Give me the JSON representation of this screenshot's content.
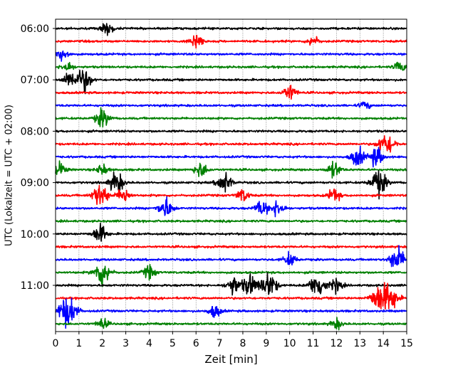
{
  "chart_data": {
    "type": "line",
    "title": "",
    "xlabel": "Zeit  [min]",
    "ylabel": "UTC (Lokalzeit = UTC + 02:00)",
    "xlim": [
      0,
      15
    ],
    "x_ticks": [
      0,
      1,
      2,
      3,
      4,
      5,
      6,
      7,
      8,
      9,
      10,
      11,
      12,
      13,
      14,
      15
    ],
    "x_tick_labels": [
      "0",
      "1",
      "2",
      "3",
      "4",
      "5",
      "6",
      "7",
      "8",
      "9",
      "10",
      "11",
      "12",
      "13",
      "14",
      "15"
    ],
    "y_tick_labels": [
      "06:00",
      "07:00",
      "08:00",
      "09:00",
      "10:00",
      "11:00"
    ],
    "grid": "vertical dotted",
    "legend": "none",
    "trace_color_cycle": [
      "#000000",
      "#ff0000",
      "#0000ff",
      "#008000"
    ],
    "series": [
      {
        "start": "06:00",
        "color": "#000000",
        "bursts": [
          [
            2.2,
            0.5
          ]
        ]
      },
      {
        "start": "06:15",
        "color": "#ff0000",
        "bursts": [
          [
            6.0,
            0.6
          ],
          [
            11.0,
            0.4
          ]
        ]
      },
      {
        "start": "06:30",
        "color": "#0000ff",
        "bursts": [
          [
            0.3,
            0.5
          ]
        ]
      },
      {
        "start": "06:45",
        "color": "#008000",
        "bursts": [
          [
            0.5,
            0.4
          ],
          [
            14.7,
            0.4
          ]
        ]
      },
      {
        "start": "07:00",
        "color": "#000000",
        "bursts": [
          [
            1.2,
            0.9
          ],
          [
            0.6,
            0.6
          ]
        ]
      },
      {
        "start": "07:15",
        "color": "#ff0000",
        "bursts": [
          [
            10.0,
            0.6
          ]
        ]
      },
      {
        "start": "07:30",
        "color": "#0000ff",
        "bursts": [
          [
            13.2,
            0.3
          ]
        ]
      },
      {
        "start": "07:45",
        "color": "#008000",
        "bursts": [
          [
            2.0,
            0.7
          ]
        ]
      },
      {
        "start": "08:00",
        "color": "#000000",
        "bursts": []
      },
      {
        "start": "08:15",
        "color": "#ff0000",
        "bursts": [
          [
            14.0,
            0.6
          ],
          [
            14.3,
            0.5
          ]
        ]
      },
      {
        "start": "08:30",
        "color": "#0000ff",
        "bursts": [
          [
            12.9,
            0.7
          ],
          [
            13.7,
            0.7
          ]
        ]
      },
      {
        "start": "08:45",
        "color": "#008000",
        "bursts": [
          [
            0.2,
            0.5
          ],
          [
            2.0,
            0.4
          ],
          [
            6.2,
            0.6
          ],
          [
            11.9,
            0.6
          ]
        ]
      },
      {
        "start": "09:00",
        "color": "#000000",
        "bursts": [
          [
            2.6,
            0.8
          ],
          [
            7.2,
            0.8
          ],
          [
            13.8,
            1.0
          ]
        ]
      },
      {
        "start": "09:15",
        "color": "#ff0000",
        "bursts": [
          [
            1.9,
            0.9
          ],
          [
            2.9,
            0.6
          ],
          [
            8.0,
            0.5
          ],
          [
            11.9,
            0.5
          ]
        ]
      },
      {
        "start": "09:30",
        "color": "#0000ff",
        "bursts": [
          [
            4.7,
            0.8
          ],
          [
            8.8,
            0.6
          ],
          [
            9.5,
            0.6
          ]
        ]
      },
      {
        "start": "09:45",
        "color": "#008000",
        "bursts": []
      },
      {
        "start": "10:00",
        "color": "#000000",
        "bursts": [
          [
            1.9,
            0.7
          ]
        ]
      },
      {
        "start": "10:15",
        "color": "#ff0000",
        "bursts": []
      },
      {
        "start": "10:30",
        "color": "#0000ff",
        "bursts": [
          [
            10.0,
            0.5
          ],
          [
            14.6,
            0.9
          ]
        ]
      },
      {
        "start": "10:45",
        "color": "#008000",
        "bursts": [
          [
            2.0,
            1.0
          ],
          [
            4.0,
            0.5
          ]
        ]
      },
      {
        "start": "11:00",
        "color": "#000000",
        "bursts": [
          [
            7.6,
            0.7
          ],
          [
            8.3,
            0.8
          ],
          [
            9.1,
            1.0
          ],
          [
            11.2,
            1.0
          ],
          [
            12.0,
            0.5
          ]
        ]
      },
      {
        "start": "11:15",
        "color": "#ff0000",
        "bursts": [
          [
            13.8,
            1.0
          ],
          [
            14.3,
            1.0
          ]
        ]
      },
      {
        "start": "11:30",
        "color": "#0000ff",
        "bursts": [
          [
            0.6,
            1.0
          ],
          [
            0.3,
            0.5
          ],
          [
            6.8,
            0.5
          ]
        ]
      },
      {
        "start": "11:45",
        "color": "#008000",
        "bursts": [
          [
            2.0,
            0.4
          ],
          [
            12.0,
            0.4
          ]
        ]
      }
    ]
  }
}
